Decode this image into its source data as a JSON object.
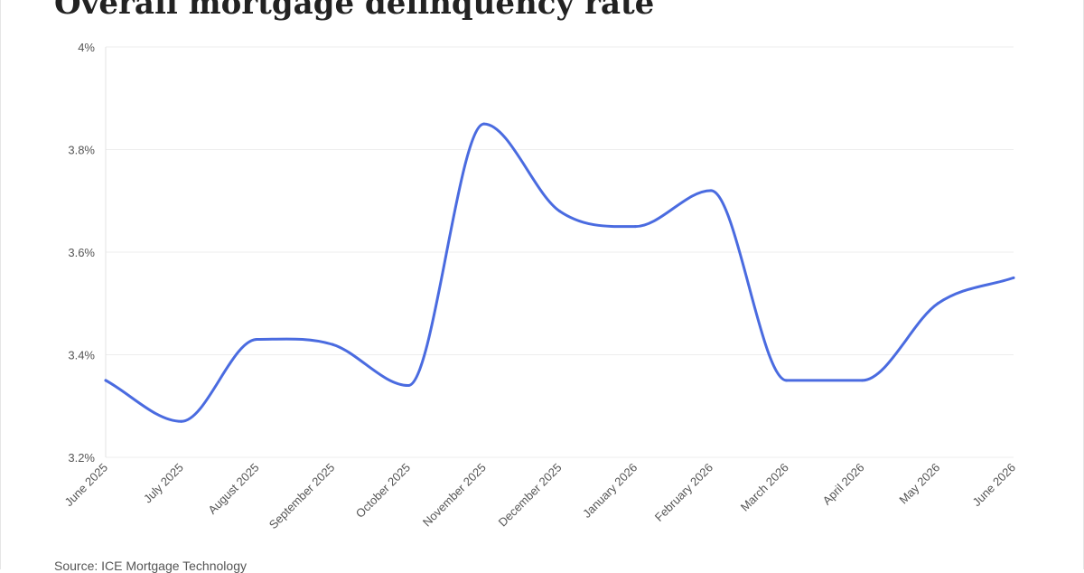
{
  "chart_data": {
    "type": "line",
    "title": "Overall mortgage delinquency rate",
    "categories": [
      "June 2025",
      "July 2025",
      "August 2025",
      "September 2025",
      "October 2025",
      "November 2025",
      "December 2025",
      "January 2026",
      "February 2026",
      "March 2026",
      "April 2026",
      "May 2026",
      "June 2026"
    ],
    "series": [
      {
        "values": [
          3.35,
          3.27,
          3.43,
          3.42,
          3.34,
          3.85,
          3.68,
          3.65,
          3.72,
          3.35,
          3.35,
          3.5,
          3.55
        ]
      }
    ],
    "ylim": [
      3.2,
      4.0
    ],
    "yticks": [
      {
        "value": 3.2,
        "label": "3.2%"
      },
      {
        "value": 3.4,
        "label": "3.4%"
      },
      {
        "value": 3.6,
        "label": "3.6%"
      },
      {
        "value": 3.8,
        "label": "3.8%"
      },
      {
        "value": 4.0,
        "label": "4%"
      }
    ],
    "grid": true,
    "colors": {
      "line": "#4a6be0",
      "grid": "#eeeeee",
      "tick_text": "#555555"
    },
    "source": "Source: ICE Mortgage Technology"
  }
}
